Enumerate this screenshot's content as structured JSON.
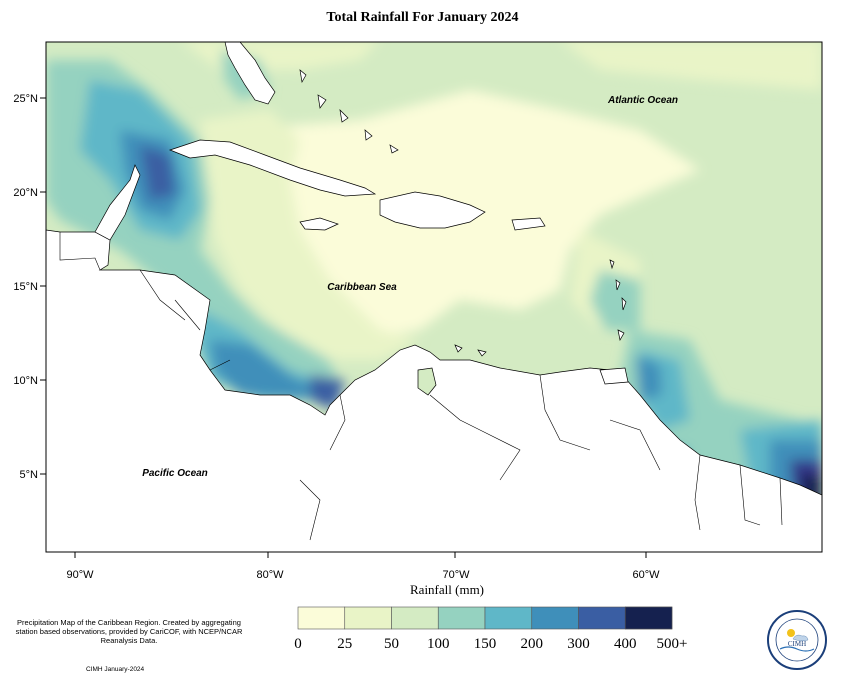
{
  "title": "Total Rainfall For January 2024",
  "map": {
    "x_ticks": [
      "90°W",
      "80°W",
      "70°W",
      "60°W"
    ],
    "y_ticks": [
      "25°N",
      "20°N",
      "15°N",
      "10°N",
      "5°N"
    ],
    "regions": {
      "atlantic": "Atlantic Ocean",
      "caribbean": "Caribbean Sea",
      "pacific": "Pacific Ocean"
    }
  },
  "legend": {
    "title": "Rainfall (mm)",
    "labels": [
      "0",
      "25",
      "50",
      "100",
      "150",
      "200",
      "300",
      "400",
      "500+"
    ],
    "colors": [
      "#fbfcd9",
      "#e9f4c7",
      "#d4ebc3",
      "#95d2c0",
      "#5fb7c8",
      "#3f8fba",
      "#3a5ea3",
      "#34398a",
      "#15214f"
    ]
  },
  "footer": {
    "description": "Precipitation Map of the Caribbean Region. Created by aggregating station based observations, provided by CariCOF, with NCEP/NCAR Reanalysis Data.",
    "credit": "CIMH January-2024",
    "logo_text": "CIMH"
  }
}
